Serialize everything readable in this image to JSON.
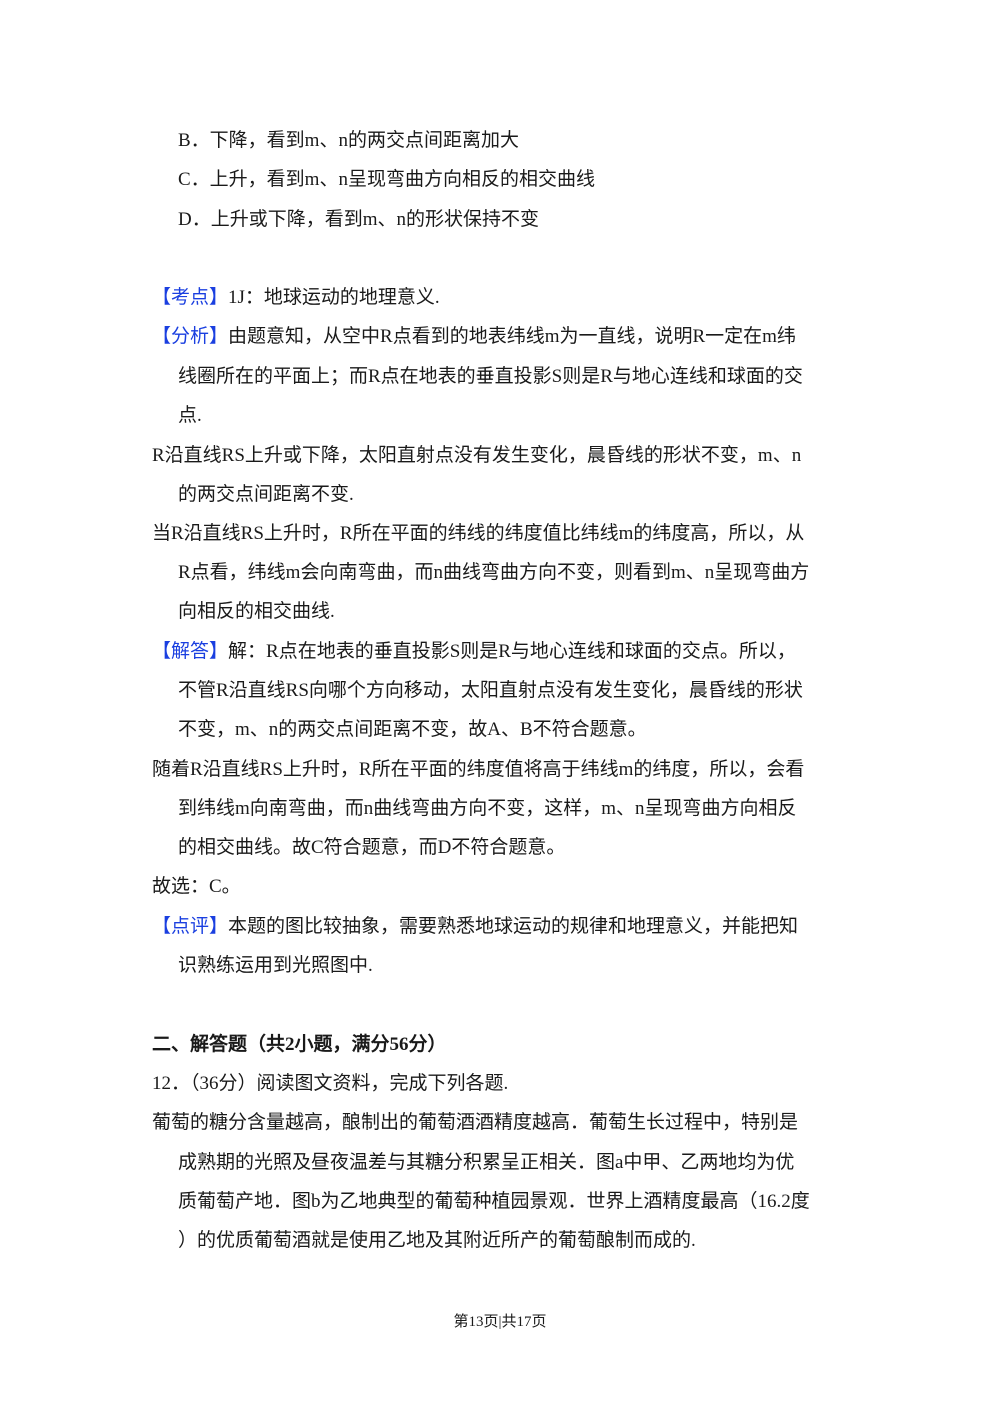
{
  "colors": {
    "tag": "#1a3fe0",
    "text": "#1a1a1a"
  },
  "lines": [
    {
      "tag": "",
      "text": "B．下降，看到m、n的两交点间距离加大"
    },
    {
      "tag": "",
      "text": "C．上升，看到m、n呈现弯曲方向相反的相交曲线"
    },
    {
      "tag": "",
      "text": "D．上升或下降，看到m、n的形状保持不变"
    },
    {
      "tag": "【考点】",
      "text": "1J：地球运动的地理意义."
    },
    {
      "tag": "【分析】",
      "text": "由题意知，从空中R点看到的地表纬线m为一直线，说明R一定在m纬"
    },
    {
      "tag": "",
      "text": "线圈所在的平面上；而R点在地表的垂直投影S则是R与地心连线和球面的交"
    },
    {
      "tag": "",
      "text": "点."
    },
    {
      "tag": "",
      "text": "R沿直线RS上升或下降，太阳直射点没有发生变化，晨昏线的形状不变，m、n"
    },
    {
      "tag": "",
      "text": "的两交点间距离不变."
    },
    {
      "tag": "",
      "text": "当R沿直线RS上升时，R所在平面的纬线的纬度值比纬线m的纬度高，所以，从"
    },
    {
      "tag": "",
      "text": "R点看，纬线m会向南弯曲，而n曲线弯曲方向不变，则看到m、n呈现弯曲方"
    },
    {
      "tag": "",
      "text": "向相反的相交曲线."
    },
    {
      "tag": "【解答】",
      "text": "解：R点在地表的垂直投影S则是R与地心连线和球面的交点。所以，"
    },
    {
      "tag": "",
      "text": "不管R沿直线RS向哪个方向移动，太阳直射点没有发生变化，晨昏线的形状"
    },
    {
      "tag": "",
      "text": "不变，m、n的两交点间距离不变，故A、B不符合题意。"
    },
    {
      "tag": "",
      "text": "随着R沿直线RS上升时，R所在平面的纬度值将高于纬线m的纬度，所以，会看"
    },
    {
      "tag": "",
      "text": "到纬线m向南弯曲，而n曲线弯曲方向不变，这样，m、n呈现弯曲方向相反"
    },
    {
      "tag": "",
      "text": "的相交曲线。故C符合题意，而D不符合题意。"
    },
    {
      "tag": "",
      "text": "故选：C。"
    },
    {
      "tag": "【点评】",
      "text": "本题的图比较抽象，需要熟悉地球运动的规律和地理意义，并能把知"
    },
    {
      "tag": "",
      "text": "识熟练运用到光照图中."
    },
    {
      "tag": "",
      "text": "二、解答题（共2小题，满分56分）"
    },
    {
      "tag": "",
      "text": "12．（36分）阅读图文资料，完成下列各题."
    },
    {
      "tag": "",
      "text": "葡萄的糖分含量越高，酿制出的葡萄酒酒精度越高．葡萄生长过程中，特别是"
    },
    {
      "tag": "",
      "text": "成熟期的光照及昼夜温差与其糖分积累呈正相关．图a中甲、乙两地均为优"
    },
    {
      "tag": "",
      "text": "质葡萄产地．图b为乙地典型的葡萄种植园景观．世界上酒精度最高（16.2度"
    },
    {
      "tag": "",
      "text": "）的优质葡萄酒就是使用乙地及其附近所产的葡萄酿制而成的."
    }
  ],
  "footer": "第13页|共17页"
}
